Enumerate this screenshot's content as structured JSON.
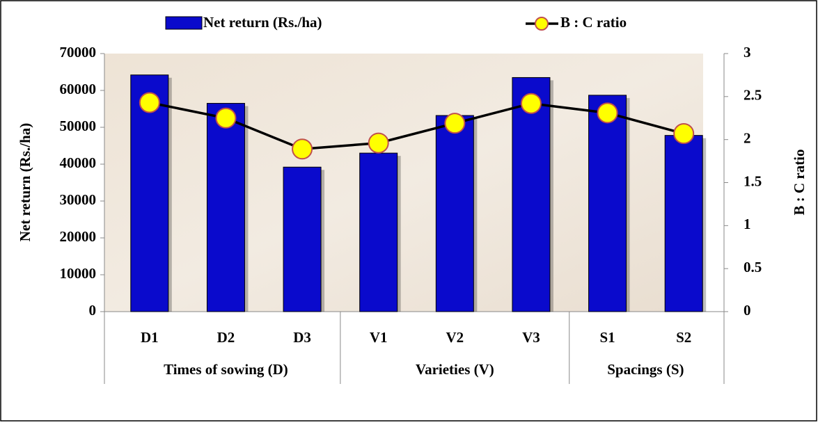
{
  "chart_data": {
    "type": "bar-line",
    "category_groups": [
      {
        "name": "Times of sowing (D)",
        "categories": [
          "D1",
          "D2",
          "D3"
        ]
      },
      {
        "name": "Varieties (V)",
        "categories": [
          "V1",
          "V2",
          "V3"
        ]
      },
      {
        "name": "Spacings (S)",
        "categories": [
          "S1",
          "S2"
        ]
      }
    ],
    "series": [
      {
        "name": "Net return (Rs./ha)",
        "type": "bar",
        "color": "#0a0acc",
        "values": [
          64200,
          56500,
          39200,
          43000,
          53200,
          63500,
          58700,
          47800
        ]
      },
      {
        "name": "B : C ratio",
        "type": "line",
        "axis": "y2",
        "color": "#000000",
        "marker_color": "#ffff00",
        "values": [
          2.43,
          2.25,
          1.89,
          1.96,
          2.19,
          2.42,
          2.31,
          2.07
        ]
      }
    ],
    "ylabel": "Net return (Rs./ha)",
    "y2label": "B : C ratio",
    "ylim": [
      0,
      70000
    ],
    "yticks": [
      0,
      10000,
      20000,
      30000,
      40000,
      50000,
      60000,
      70000
    ],
    "y2lim": [
      0,
      3
    ],
    "y2ticks": [
      0,
      0.5,
      1,
      1.5,
      2,
      2.5,
      3
    ],
    "legend": "top",
    "grid": false
  }
}
